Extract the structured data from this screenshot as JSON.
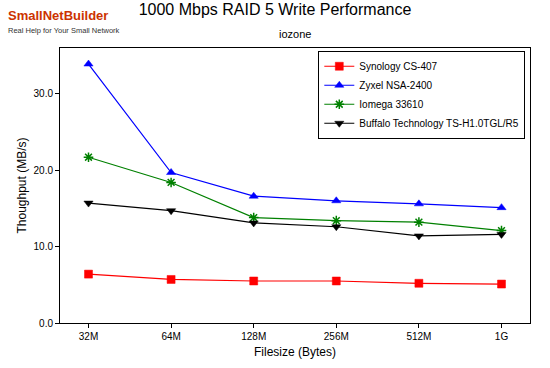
{
  "chart_data": {
    "type": "line",
    "title": "1000 Mbps RAID 5 Write Performance",
    "subtitle": "iozone",
    "annotations": [
      "SmallNetBuilder",
      "Real Help for Your Small Network"
    ],
    "x_label": "Filesize (Bytes)",
    "y_label": "Thoughput (MB/s)",
    "categories": [
      "32M",
      "64M",
      "128M",
      "256M",
      "512M",
      "1G"
    ],
    "series": [
      {
        "name": "Synology CS-407",
        "color": "#ff0000",
        "marker": "square",
        "values": [
          6.4,
          5.7,
          5.5,
          5.5,
          5.2,
          5.1
        ]
      },
      {
        "name": "Zyxel NSA-2400",
        "color": "#0000ff",
        "marker": "triangle-up",
        "values": [
          33.9,
          19.7,
          16.6,
          16.0,
          15.6,
          15.1
        ]
      },
      {
        "name": "Iomega 33610",
        "color": "#008000",
        "marker": "asterisk",
        "values": [
          21.7,
          18.4,
          13.8,
          13.4,
          13.2,
          12.1
        ]
      },
      {
        "name": "Buffalo Technology TS-H1.0TGL/R5",
        "color": "#000000",
        "marker": "triangle-down",
        "values": [
          15.7,
          14.7,
          13.1,
          12.6,
          11.4,
          11.6
        ]
      }
    ],
    "ylim": [
      0,
      36
    ],
    "yticks": [
      {
        "value": 0,
        "label": "0.0"
      },
      {
        "value": 10,
        "label": "10.0"
      },
      {
        "value": 20,
        "label": "20.0"
      },
      {
        "value": 30,
        "label": "30.0"
      }
    ],
    "grid": false,
    "legend": "top-right"
  }
}
